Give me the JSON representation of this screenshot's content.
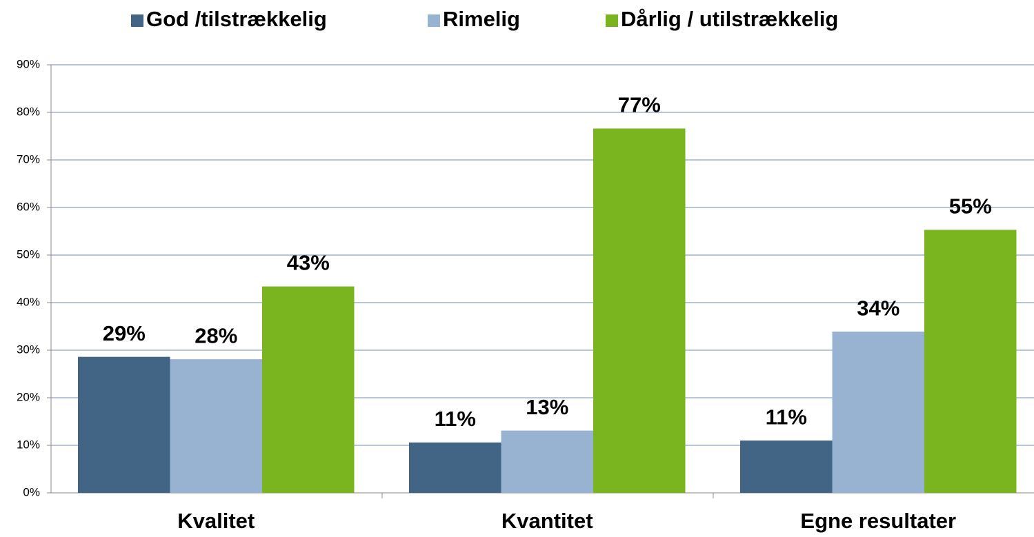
{
  "chart_data": {
    "type": "bar",
    "categories": [
      "Kvalitet",
      "Kvantitet",
      "Egne resultater"
    ],
    "series": [
      {
        "name": "God /tilstrækkelig",
        "color": "#426586",
        "values": [
          28.6,
          10.6,
          11.0
        ],
        "value_labels": [
          "29%",
          "11%",
          "11%"
        ]
      },
      {
        "name": "Rimelig",
        "color": "#98b3d2",
        "values": [
          28.1,
          13.1,
          33.9
        ],
        "value_labels": [
          "28%",
          "13%",
          "34%"
        ]
      },
      {
        "name": "Dårlig / utilstrækkelig",
        "color": "#7ab41f",
        "values": [
          43.4,
          76.6,
          55.3
        ],
        "value_labels": [
          "43%",
          "77%",
          "55%"
        ]
      }
    ],
    "ylim": [
      0,
      90
    ],
    "yticks": [
      {
        "value": 0,
        "label": "0%"
      },
      {
        "value": 10,
        "label": "10%"
      },
      {
        "value": 20,
        "label": "20%"
      },
      {
        "value": 30,
        "label": "30%"
      },
      {
        "value": 40,
        "label": "40%"
      },
      {
        "value": 50,
        "label": "50%"
      },
      {
        "value": 60,
        "label": "60%"
      },
      {
        "value": 70,
        "label": "70%"
      },
      {
        "value": 80,
        "label": "80%"
      },
      {
        "value": 90,
        "label": "90%"
      }
    ],
    "grid": true,
    "legend": "top"
  }
}
